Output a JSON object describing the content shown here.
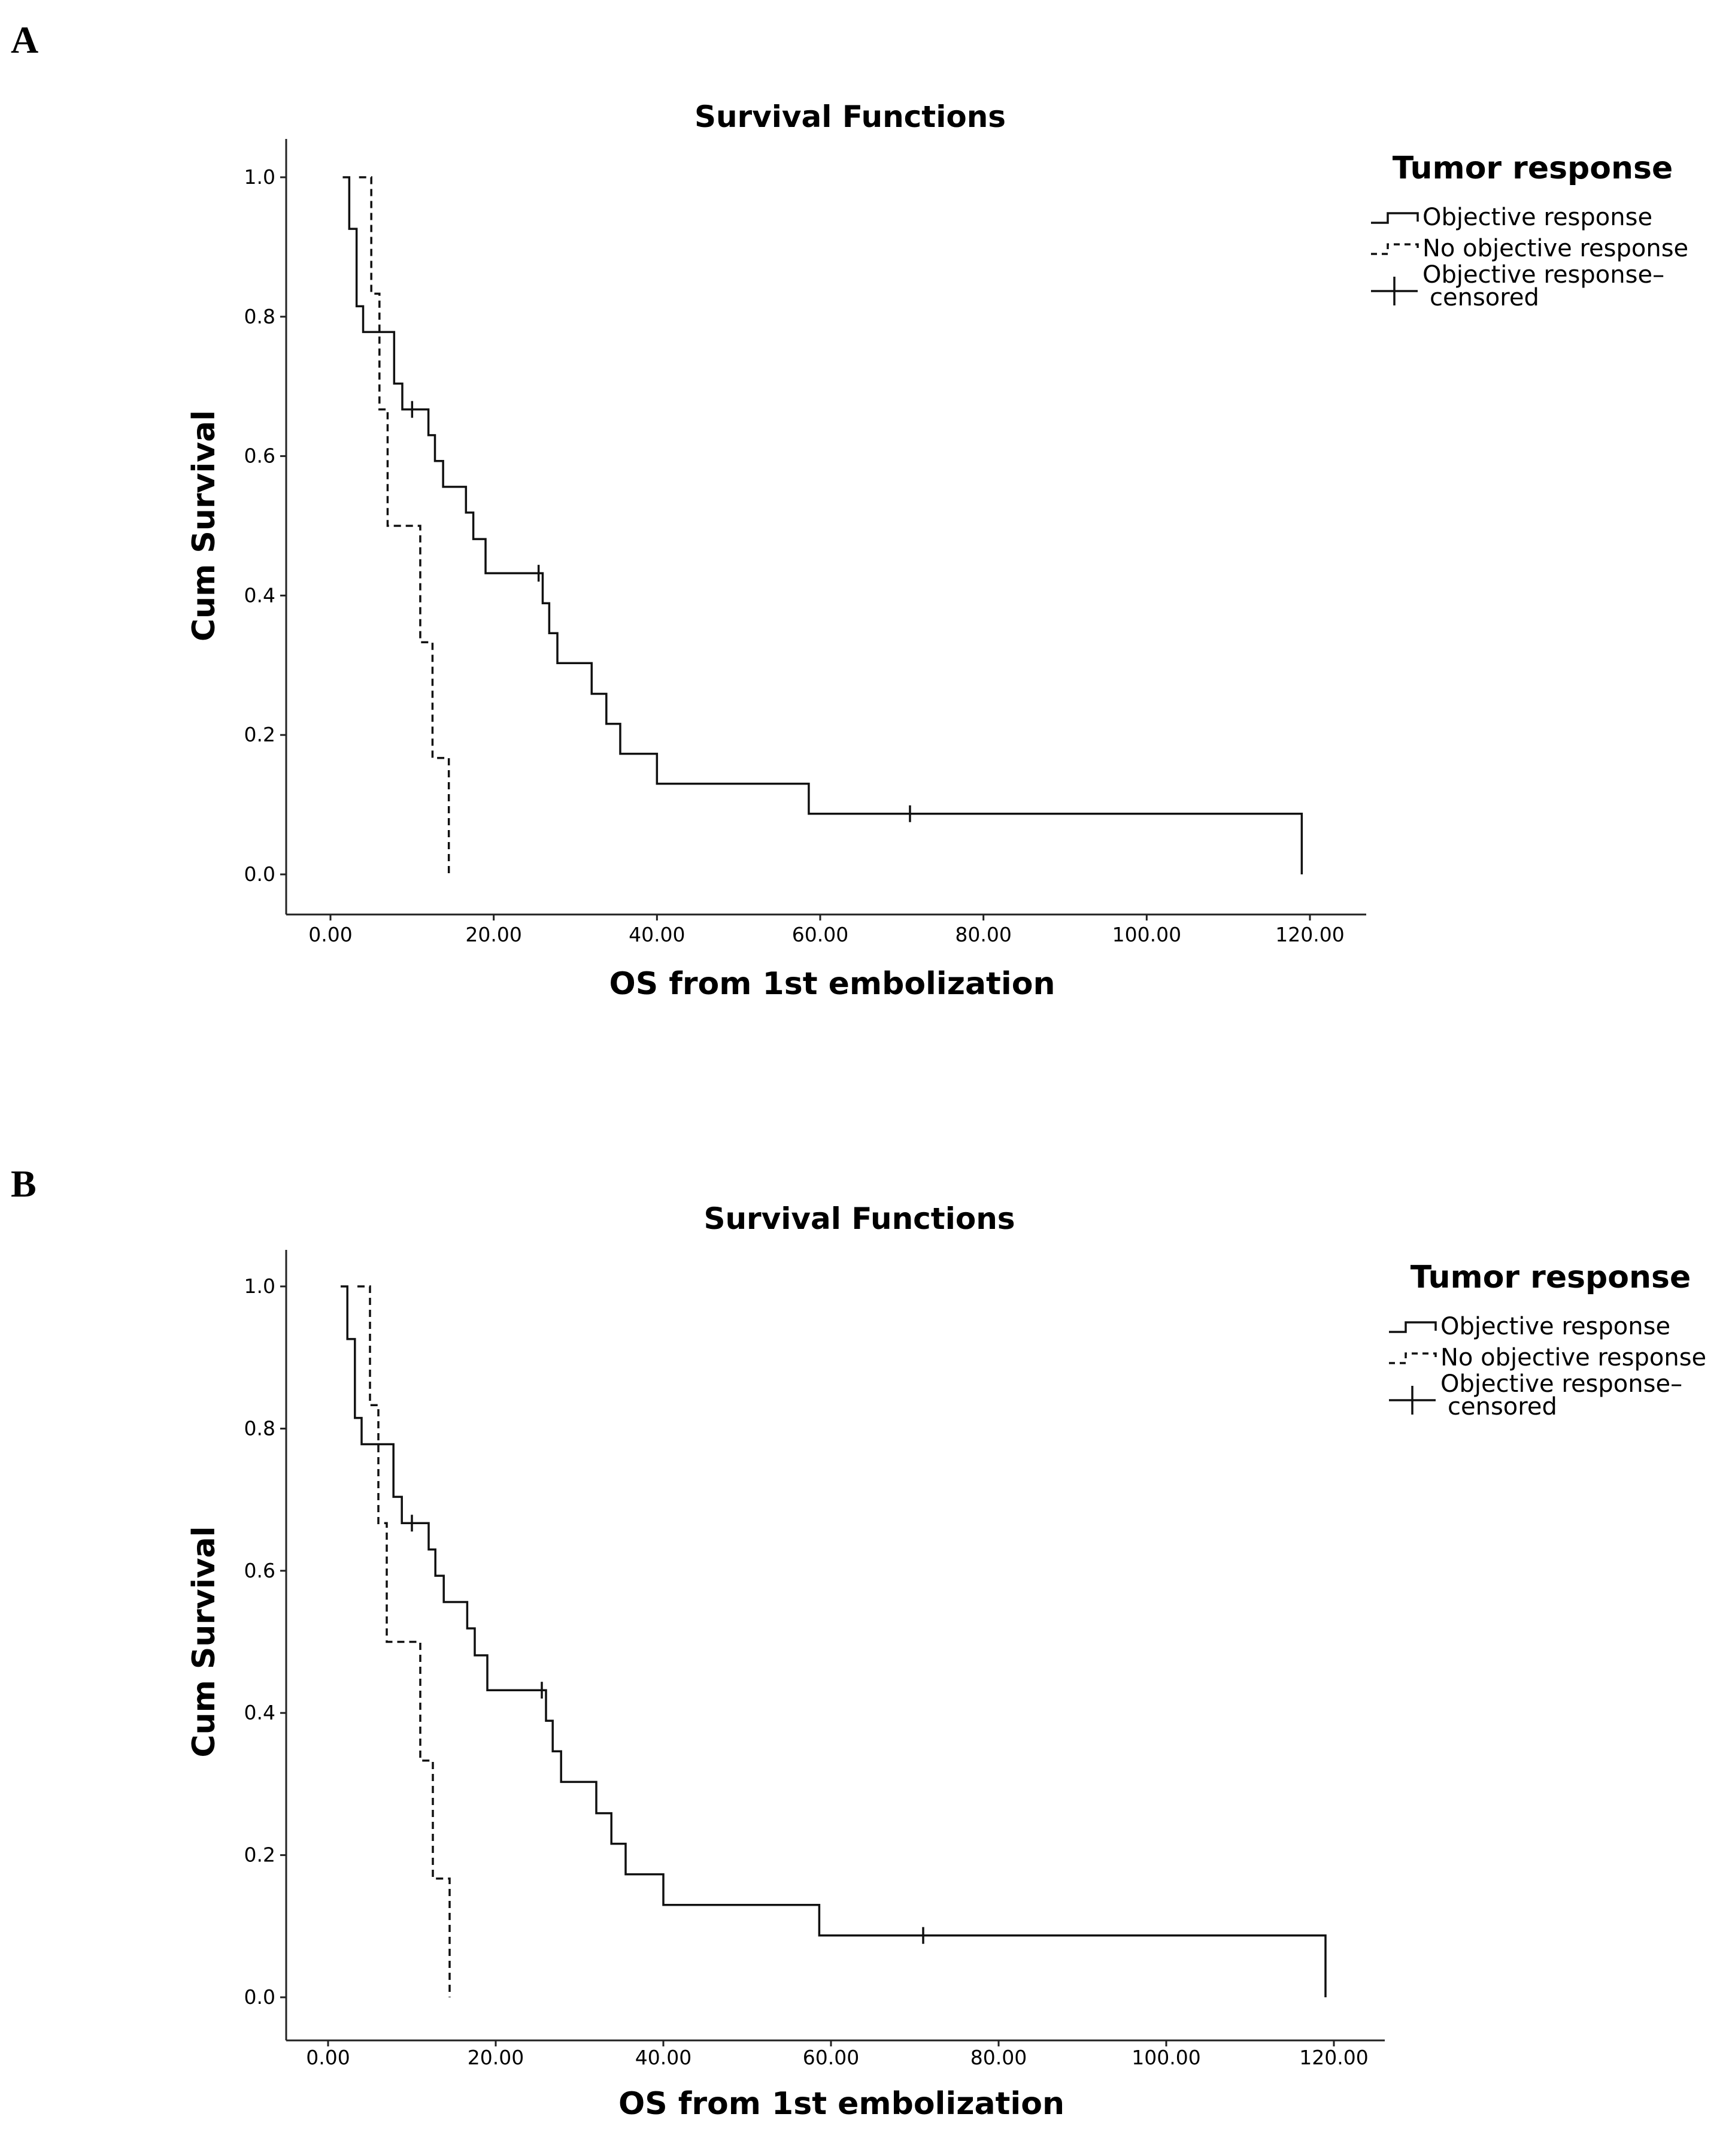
{
  "chart_data": [
    {
      "type": "line",
      "panel_label": "A",
      "title": "Survival Functions",
      "xlabel": "OS from 1st embolization",
      "ylabel": "Cum Survival",
      "xlim": [
        -6,
        124
      ],
      "ylim": [
        0,
        1.05
      ],
      "x_ticks": [
        "0.00",
        "20.00",
        "40.00",
        "60.00",
        "80.00",
        "100.00",
        "120.00"
      ],
      "x_tick_values": [
        0,
        20,
        40,
        60,
        80,
        100,
        120
      ],
      "y_ticks": [
        "0.0",
        "0.2",
        "0.4",
        "0.6",
        "0.8",
        "1.0"
      ],
      "y_tick_values": [
        0,
        0.2,
        0.4,
        0.6,
        0.8,
        1.0
      ],
      "legend": {
        "title": "Tumor response",
        "position": "top-right",
        "entries": [
          "Objective response",
          "No objective response",
          "Objective response–",
          "censored"
        ]
      },
      "series": [
        {
          "name": "Objective response",
          "style": "solid",
          "steps": [
            [
              1.5,
              1.0
            ],
            [
              2.3,
              0.926
            ],
            [
              3.2,
              0.815
            ],
            [
              4.0,
              0.778
            ],
            [
              7.8,
              0.704
            ],
            [
              8.8,
              0.667
            ],
            [
              12.0,
              0.63
            ],
            [
              12.8,
              0.593
            ],
            [
              13.8,
              0.556
            ],
            [
              16.6,
              0.519
            ],
            [
              17.5,
              0.481
            ],
            [
              19.0,
              0.432
            ],
            [
              26.0,
              0.389
            ],
            [
              26.8,
              0.346
            ],
            [
              27.8,
              0.303
            ],
            [
              32.0,
              0.259
            ],
            [
              33.8,
              0.216
            ],
            [
              35.5,
              0.173
            ],
            [
              40.0,
              0.13
            ],
            [
              58.6,
              0.087
            ],
            [
              119.0,
              0.0
            ]
          ]
        },
        {
          "name": "No objective response",
          "style": "dashed",
          "steps": [
            [
              3.5,
              1.0
            ],
            [
              5.0,
              0.833
            ],
            [
              6.0,
              0.667
            ],
            [
              7.0,
              0.5
            ],
            [
              11.0,
              0.333
            ],
            [
              12.5,
              0.167
            ],
            [
              14.5,
              0.0
            ]
          ]
        }
      ],
      "censored": [
        {
          "series": "Objective response",
          "x": 10.0,
          "y": 0.667
        },
        {
          "series": "Objective response",
          "x": 25.5,
          "y": 0.432
        },
        {
          "series": "Objective response",
          "x": 71.0,
          "y": 0.087
        }
      ]
    },
    {
      "type": "line",
      "panel_label": "B",
      "title": "Survival Functions",
      "xlabel": "OS from 1st embolization",
      "ylabel": "Cum Survival",
      "xlim": [
        -6,
        124
      ],
      "ylim": [
        0,
        1.05
      ],
      "x_ticks": [
        "0.00",
        "20.00",
        "40.00",
        "60.00",
        "80.00",
        "100.00",
        "120.00"
      ],
      "x_tick_values": [
        0,
        20,
        40,
        60,
        80,
        100,
        120
      ],
      "y_ticks": [
        "0.0",
        "0.2",
        "0.4",
        "0.6",
        "0.8",
        "1.0"
      ],
      "y_tick_values": [
        0,
        0.2,
        0.4,
        0.6,
        0.8,
        1.0
      ],
      "legend": {
        "title": "Tumor response",
        "position": "top-right",
        "entries": [
          "Objective response",
          "No objective response",
          "Objective response–",
          "censored"
        ]
      },
      "series": [
        {
          "name": "Objective response",
          "style": "solid",
          "steps": [
            [
              1.5,
              1.0
            ],
            [
              2.3,
              0.926
            ],
            [
              3.2,
              0.815
            ],
            [
              4.0,
              0.778
            ],
            [
              7.8,
              0.704
            ],
            [
              8.8,
              0.667
            ],
            [
              12.0,
              0.63
            ],
            [
              12.8,
              0.593
            ],
            [
              13.8,
              0.556
            ],
            [
              16.6,
              0.519
            ],
            [
              17.5,
              0.481
            ],
            [
              19.0,
              0.432
            ],
            [
              26.0,
              0.389
            ],
            [
              26.8,
              0.346
            ],
            [
              27.8,
              0.303
            ],
            [
              32.0,
              0.259
            ],
            [
              33.8,
              0.216
            ],
            [
              35.5,
              0.173
            ],
            [
              40.0,
              0.13
            ],
            [
              58.6,
              0.087
            ],
            [
              119.0,
              0.0
            ]
          ]
        },
        {
          "name": "No objective response",
          "style": "dashed",
          "steps": [
            [
              3.5,
              1.0
            ],
            [
              5.0,
              0.833
            ],
            [
              6.0,
              0.667
            ],
            [
              7.0,
              0.5
            ],
            [
              11.0,
              0.333
            ],
            [
              12.5,
              0.167
            ],
            [
              14.5,
              0.0
            ]
          ]
        }
      ],
      "censored": [
        {
          "series": "Objective response",
          "x": 10.0,
          "y": 0.667
        },
        {
          "series": "Objective response",
          "x": 25.5,
          "y": 0.432
        },
        {
          "series": "Objective response",
          "x": 71.0,
          "y": 0.087
        }
      ]
    }
  ]
}
